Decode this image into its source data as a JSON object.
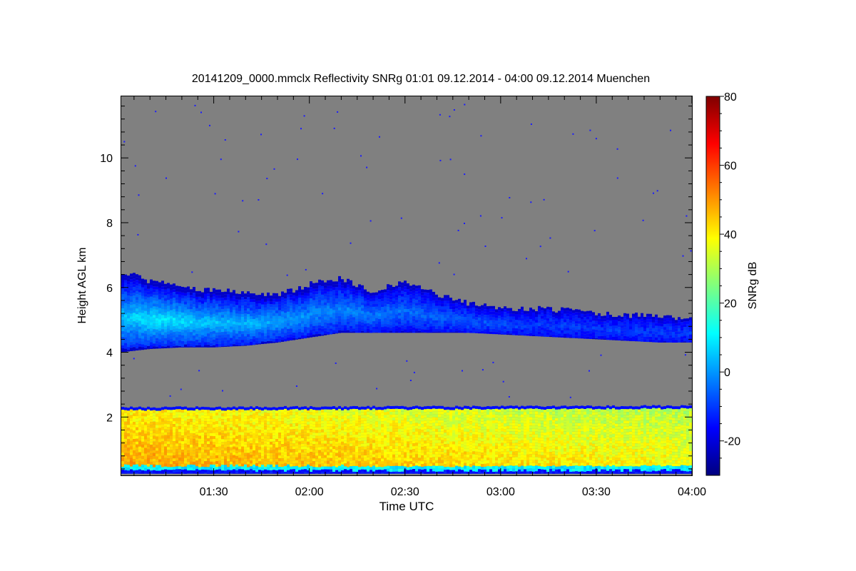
{
  "colors": {
    "no_signal": "#808080",
    "colormap": [
      "#00007f",
      "#0000ff",
      "#007fff",
      "#00ffff",
      "#7fff7f",
      "#ffff00",
      "#ff7f00",
      "#ff0000",
      "#7f0000"
    ]
  },
  "chart_data": {
    "type": "heatmap",
    "title": "20141209_0000.mmclx Reflectivity SNRg   01:01 09.12.2014 - 04:00 09.12.2014 Muenchen",
    "xlabel": "Time UTC",
    "ylabel": "Height AGL km",
    "colorbar_label": "SNRg dB",
    "xlim_minutes_utc": [
      61,
      240
    ],
    "ylim_km": [
      0.2,
      11.9
    ],
    "x_ticks": [
      {
        "value": 90,
        "label": "01:30"
      },
      {
        "value": 120,
        "label": "02:00"
      },
      {
        "value": 150,
        "label": "02:30"
      },
      {
        "value": 180,
        "label": "03:00"
      },
      {
        "value": 210,
        "label": "03:30"
      },
      {
        "value": 240,
        "label": "04:00"
      }
    ],
    "y_ticks": [
      {
        "value": 2,
        "label": "2"
      },
      {
        "value": 4,
        "label": "4"
      },
      {
        "value": 6,
        "label": "6"
      },
      {
        "value": 8,
        "label": "8"
      },
      {
        "value": 10,
        "label": "10"
      }
    ],
    "colorbar_range_db": [
      -30,
      80
    ],
    "colorbar_ticks": [
      {
        "value": -20,
        "label": "-20"
      },
      {
        "value": 0,
        "label": "0"
      },
      {
        "value": 20,
        "label": "20"
      },
      {
        "value": 40,
        "label": "40"
      },
      {
        "value": 60,
        "label": "60"
      },
      {
        "value": 80,
        "label": "80"
      }
    ],
    "layers": [
      {
        "name": "upper cloud layer",
        "time_min": [
          61,
          70,
          80,
          90,
          100,
          110,
          120,
          130,
          140,
          150,
          160,
          170,
          180,
          190,
          200,
          210,
          220,
          230,
          240
        ],
        "base_km": [
          4.0,
          4.1,
          4.15,
          4.15,
          4.2,
          4.3,
          4.45,
          4.6,
          4.6,
          4.6,
          4.6,
          4.6,
          4.55,
          4.5,
          4.45,
          4.4,
          4.35,
          4.3,
          4.3
        ],
        "top_km": [
          6.5,
          6.2,
          6.0,
          5.9,
          5.85,
          5.75,
          6.1,
          6.3,
          5.85,
          6.2,
          5.8,
          5.5,
          5.35,
          5.35,
          5.3,
          5.2,
          5.15,
          5.1,
          5.05
        ],
        "peak_snr_db": [
          5,
          10,
          8,
          5,
          3,
          2,
          0,
          -2,
          -3,
          -5,
          -6,
          -7,
          -8,
          -10,
          -10,
          -10,
          -10,
          -10,
          -10
        ]
      },
      {
        "name": "lower precipitation layer",
        "time_min": [
          61,
          240
        ],
        "base_km": [
          0.25,
          0.25
        ],
        "top_km": [
          2.3,
          2.35
        ],
        "peak_snr_db": [
          48,
          38
        ]
      }
    ]
  }
}
